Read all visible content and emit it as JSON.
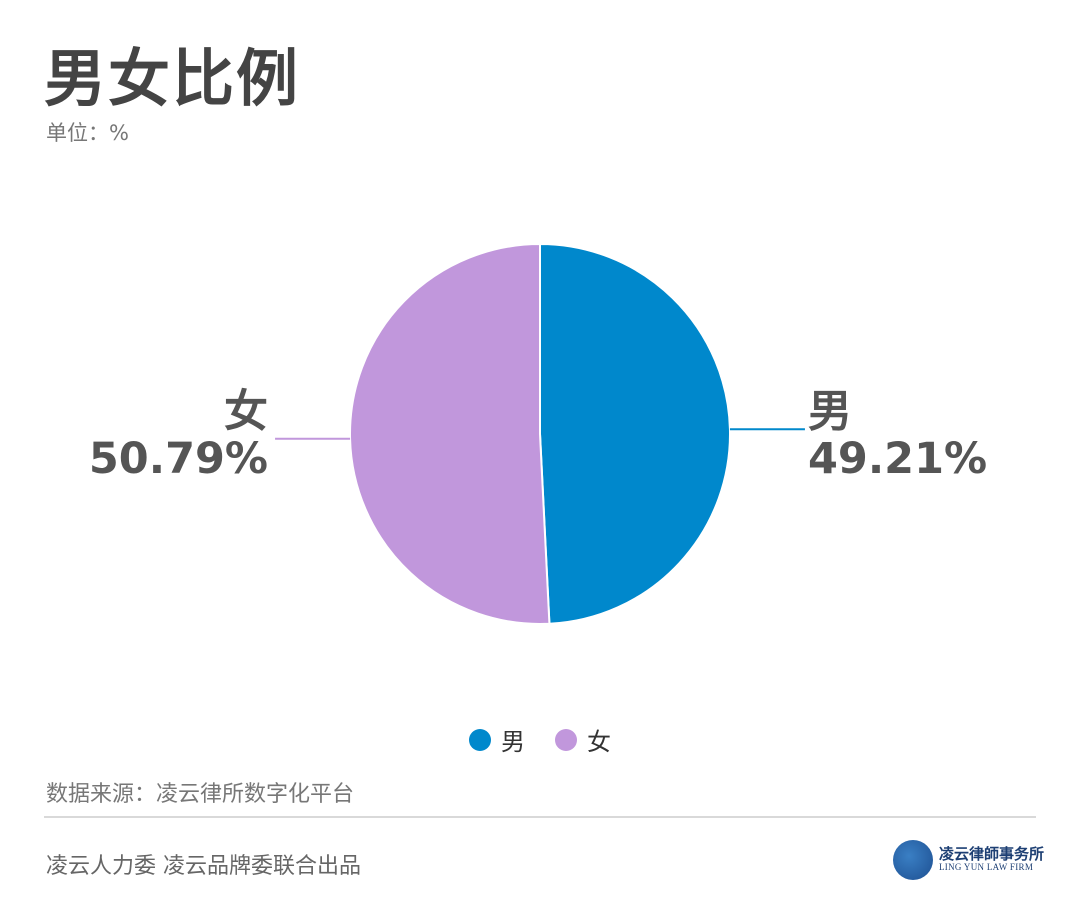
{
  "header": {
    "title": "男女比例",
    "unit": "单位：%"
  },
  "chart_data": {
    "type": "pie",
    "title": "男女比例",
    "unit": "%",
    "series": [
      {
        "name": "男",
        "value": 49.21,
        "label": "49.21%",
        "color": "#0088cc"
      },
      {
        "name": "女",
        "value": 50.79,
        "label": "50.79%",
        "color": "#c197dc"
      }
    ],
    "legend": [
      "男",
      "女"
    ],
    "legend_position": "bottom"
  },
  "footer": {
    "source": "数据来源：凌云律所数字化平台",
    "credit": "凌云人力委 凌云品牌委联合出品",
    "logo_cn": "凌云律師事务所",
    "logo_en": "LING YUN LAW FIRM"
  }
}
